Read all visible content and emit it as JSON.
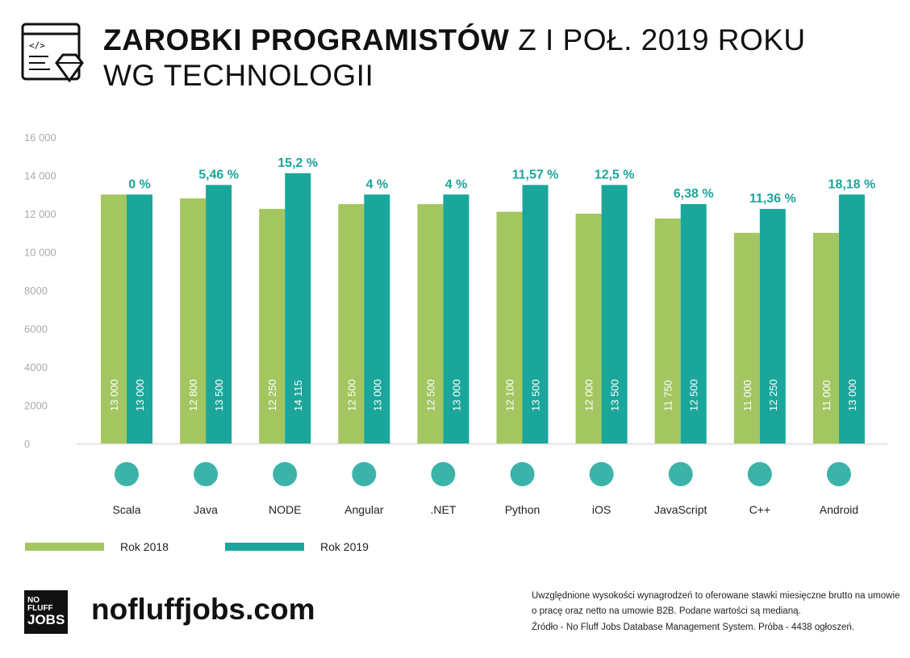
{
  "title": {
    "bold": "ZAROBKI PROGRAMISTÓW",
    "rest": " Z I POŁ. 2019 ROKU",
    "line2": "WG TECHNOLOGII"
  },
  "colors": {
    "y2018": "#a3c660",
    "y2019": "#1aa69a",
    "pct": "#1aa69a"
  },
  "chart_data": {
    "type": "bar",
    "categories": [
      "Scala",
      "Java",
      "NODE",
      "Angular",
      ".NET",
      "Python",
      "iOS",
      "JavaScript",
      "C++",
      "Android"
    ],
    "icons": [
      "scala-icon",
      "java-icon",
      "node-icon",
      "angular-icon",
      "dotnet-icon",
      "python-icon",
      "apple-icon",
      "javascript-icon",
      "cplusplus-icon",
      "android-icon"
    ],
    "series": [
      {
        "name": "Rok 2018",
        "values": [
          13000,
          12800,
          12250,
          12500,
          12500,
          12100,
          12000,
          11750,
          11000,
          11000
        ],
        "labels": [
          "13 000",
          "12 800",
          "12 250",
          "12 500",
          "12 500",
          "12 100",
          "12 000",
          "11 750",
          "11 000",
          "11 000"
        ]
      },
      {
        "name": "Rok 2019",
        "values": [
          13000,
          13500,
          14115,
          13000,
          13000,
          13500,
          13500,
          12500,
          12250,
          13000
        ],
        "labels": [
          "13 000",
          "13 500",
          "14 115",
          "13 000",
          "13 000",
          "13 500",
          "13 500",
          "12 500",
          "12 250",
          "13 000"
        ]
      }
    ],
    "growth_labels": [
      "0 %",
      "5,46 %",
      "15,2 %",
      "4 %",
      "4 %",
      "11,57 %",
      "12,5 %",
      "6,38 %",
      "11,36 %",
      "18,18 %"
    ],
    "ylim": [
      0,
      16000
    ],
    "yticks": [
      0,
      2000,
      4000,
      6000,
      8000,
      10000,
      12000,
      14000,
      16000
    ],
    "ytick_labels": [
      "0",
      "2000",
      "4000",
      "6000",
      "8000",
      "10 000",
      "12 000",
      "14 000",
      "16 000"
    ],
    "grid": false,
    "legend": "bottom-left"
  },
  "footer": {
    "logo": {
      "line1": "NO FLUFF",
      "line2": "JOBS"
    },
    "site": "nofluffjobs.com",
    "note": "Uwzględnione wysokości wynagrodzeń to oferowane stawki miesięczne brutto na umowie o pracę oraz netto na umowie B2B. Podane wartości są medianą.",
    "source": "Źródło - No Fluff Jobs Database Management System. Próba - 4438 ogłoszeń."
  }
}
